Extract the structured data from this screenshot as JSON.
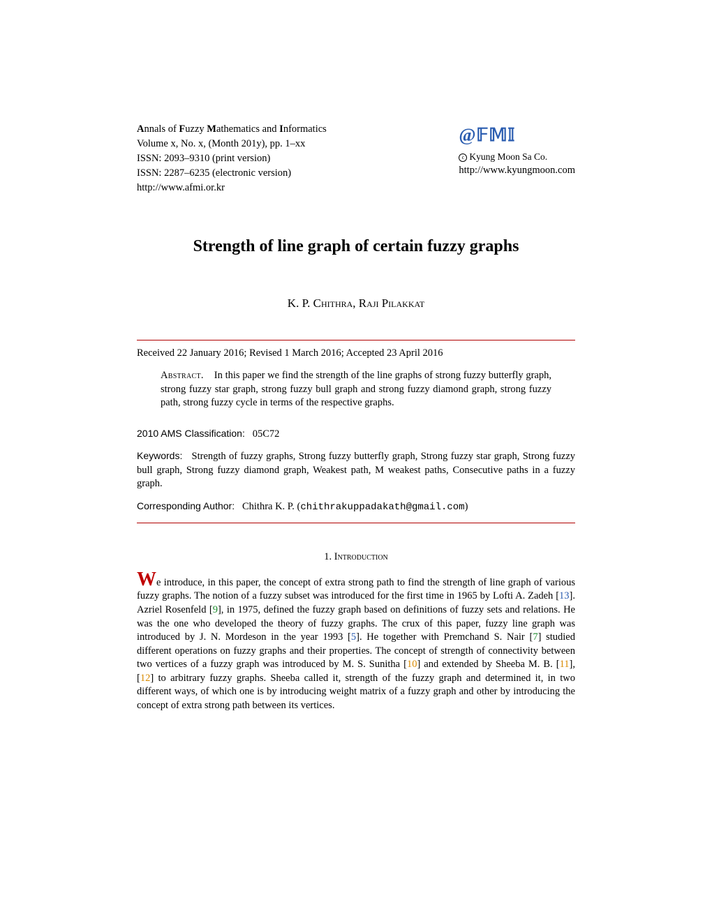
{
  "journal": {
    "title_html": "Annals of Fuzzy Mathematics and Informatics",
    "volume_line": "Volume x, No. x, (Month 201y), pp. 1–xx",
    "issn_print": "ISSN: 2093–9310 (print version)",
    "issn_elec": "ISSN: 2287–6235 (electronic version)",
    "url": "http://www.afmi.or.kr"
  },
  "publisher": {
    "logo": "@𝔽𝕄𝕀",
    "copyright": "Kyung Moon Sa Co.",
    "url": "http://www.kyungmoon.com"
  },
  "paper": {
    "title": "Strength of line graph of certain fuzzy graphs",
    "authors": "K. P. Chithra, Raji Pilakkat",
    "dates": "Received 22 January 2016; Revised 1 March 2016; Accepted 23 April 2016",
    "abstract_label": "Abstract.",
    "abstract": "In this paper we find the strength of the line graphs of strong fuzzy butterfly graph, strong fuzzy star graph, strong fuzzy bull graph and strong fuzzy diamond graph, strong fuzzy path, strong fuzzy cycle in terms of the respective graphs.",
    "ams_label": "2010 AMS Classification:",
    "ams_value": "05C72",
    "kw_label": "Keywords:",
    "kw_value": "Strength of fuzzy graphs, Strong fuzzy butterfly graph, Strong fuzzy star graph, Strong fuzzy bull graph, Strong fuzzy diamond graph, Weakest path, M weakest paths, Consecutive paths in a fuzzy graph.",
    "corr_label": "Corresponding Author:",
    "corr_name": "Chithra K. P. (",
    "corr_email": "chithrakuppadakath@gmail.com",
    "corr_close": ")"
  },
  "section1": {
    "number": "1.",
    "heading": "Introduction",
    "dropcap": "W",
    "lead": "e introduce, in this paper, the concept of extra strong path to find the strength of line graph of various fuzzy graphs. The notion of a fuzzy subset was introduced for the first time in 1965 by Lofti A. Zadeh [",
    "c13": "13",
    "t2": "]. Azriel Rosenfeld [",
    "c9": "9",
    "t3": "], in 1975, defined the fuzzy graph based on definitions of fuzzy sets and relations. He was the one who developed the theory of fuzzy graphs. The crux of this paper, fuzzy line graph was introduced by J. N. Mordeson in the year 1993 [",
    "c5": "5",
    "t4": "]. He together with Premchand S. Nair [",
    "c7": "7",
    "t5": "] studied different operations on fuzzy graphs and their properties. The concept of strength of connectivity between two vertices of a fuzzy graph was introduced by M. S. Sunitha [",
    "c10": "10",
    "t6": "] and extended by Sheeba M. B. [",
    "c11": "11",
    "t7": "], [",
    "c12": "12",
    "t8": "] to arbitrary fuzzy graphs. Sheeba called it, strength of the fuzzy graph and determined it, in two different ways, of which one is by introducing weight matrix of a fuzzy graph and other by introducing the concept of extra strong path between its vertices."
  },
  "colors": {
    "rule": "#b00000",
    "link_blue": "#2b5db0",
    "cite_green": "#1a8a2a",
    "cite_orange": "#d98a00",
    "dropcap": "#c00000"
  }
}
